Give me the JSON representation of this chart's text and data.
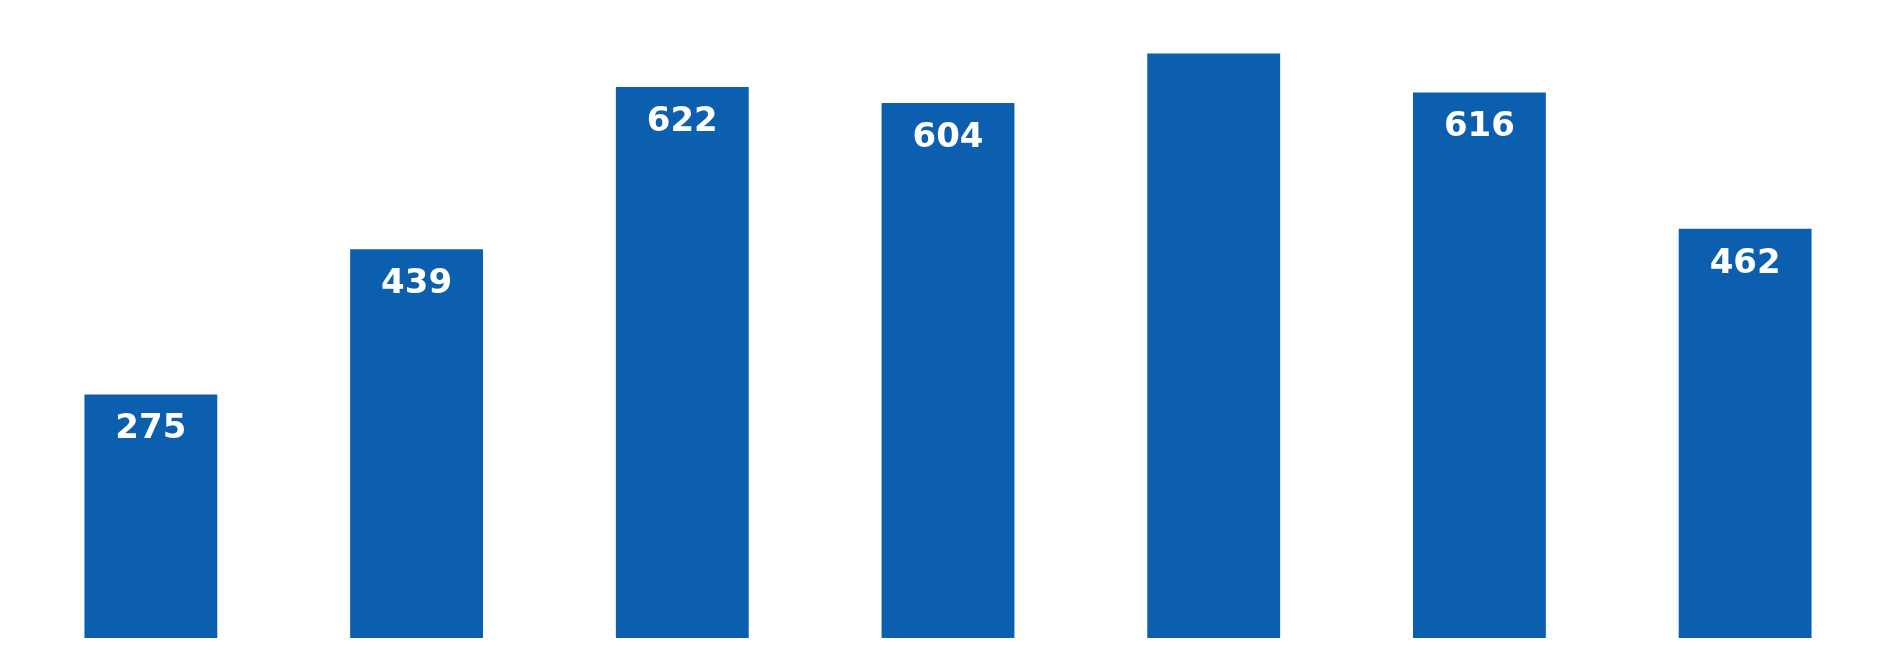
{
  "chart_data": {
    "type": "bar",
    "categories": [
      null,
      null,
      null,
      null,
      null,
      null,
      null
    ],
    "values": [
      275,
      439,
      622,
      604,
      660,
      616,
      462
    ],
    "value_labels": [
      "275",
      "439",
      "622",
      "604",
      null,
      "616",
      "462"
    ],
    "color": "#0b5fae",
    "grid": false,
    "legend": false,
    "tick_labels": false
  }
}
